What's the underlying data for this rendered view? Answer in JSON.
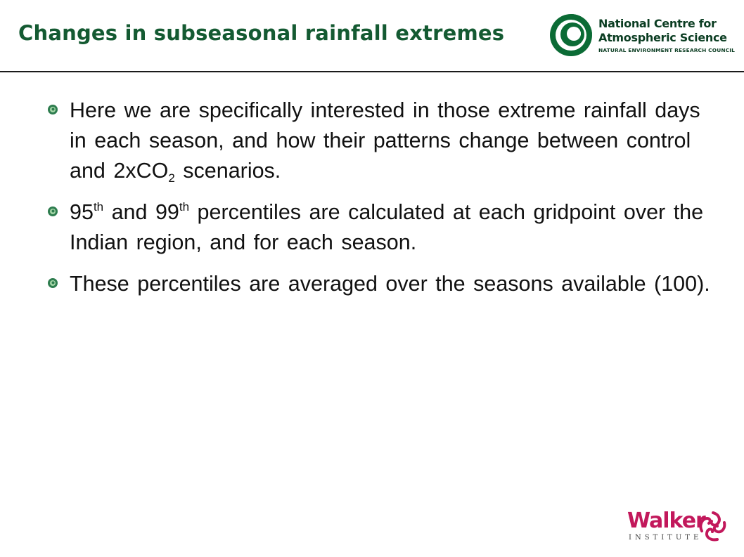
{
  "title": "Changes in subseasonal rainfall extremes",
  "ncas_logo": {
    "line1": "National Centre for",
    "line2": "Atmospheric Science",
    "line3": "NATURAL ENVIRONMENT RESEARCH COUNCIL",
    "color": "#0b6b35"
  },
  "bullets": [
    {
      "pre": "Here we are specifically interested in those extreme rainfall days in each season, and how their patterns change between control and 2xCO",
      "sub": "2",
      "post": " scenarios."
    },
    {
      "n1": "95",
      "sup1": "th",
      "mid": " and 99",
      "sup2": "th",
      "post": " percentiles are calculated at each gridpoint over the Indian region, and for each season."
    },
    {
      "text": "These percentiles are averaged over the seasons available (100)."
    }
  ],
  "walker_logo": {
    "word": "Walker",
    "sub": "INSTITUTE",
    "color": "#c2185b"
  },
  "colors": {
    "title": "#145a32",
    "bullet_icon": "#2e7d4f",
    "text": "#111111"
  }
}
